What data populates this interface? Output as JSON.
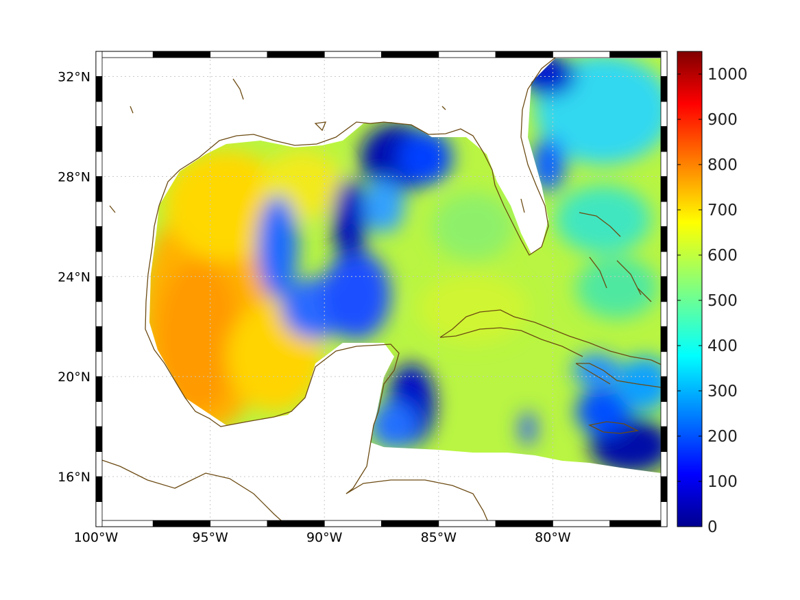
{
  "map": {
    "lon_range": [
      -100,
      -75
    ],
    "lat_range": [
      14,
      33
    ],
    "lon_ticks": [
      {
        "lon": -100,
        "label": "100°W"
      },
      {
        "lon": -95,
        "label": "95°W"
      },
      {
        "lon": -90,
        "label": "90°W"
      },
      {
        "lon": -85,
        "label": "85°W"
      },
      {
        "lon": -80,
        "label": "80°W"
      }
    ],
    "lat_ticks": [
      {
        "lat": 16,
        "label": "16°N"
      },
      {
        "lat": 20,
        "label": "20°N"
      },
      {
        "lat": 24,
        "label": "24°N"
      },
      {
        "lat": 28,
        "label": "28°N"
      },
      {
        "lat": 32,
        "label": "32°N"
      }
    ],
    "grid": true,
    "coastline_color": "#6b4a12",
    "colormap": "jet"
  },
  "colorbar": {
    "range": [
      0,
      1050
    ],
    "ticks": [
      {
        "value": 0,
        "label": "0"
      },
      {
        "value": 100,
        "label": "100"
      },
      {
        "value": 200,
        "label": "200"
      },
      {
        "value": 300,
        "label": "300"
      },
      {
        "value": 400,
        "label": "400"
      },
      {
        "value": 500,
        "label": "500"
      },
      {
        "value": 600,
        "label": "600"
      },
      {
        "value": 700,
        "label": "700"
      },
      {
        "value": 800,
        "label": "800"
      },
      {
        "value": 900,
        "label": "900"
      },
      {
        "value": 1000,
        "label": "1000"
      }
    ],
    "stops": [
      "#00008f",
      "#0000ff",
      "#0080ff",
      "#00ffff",
      "#80ff80",
      "#ffff00",
      "#ff8000",
      "#ff0000",
      "#800000"
    ]
  }
}
